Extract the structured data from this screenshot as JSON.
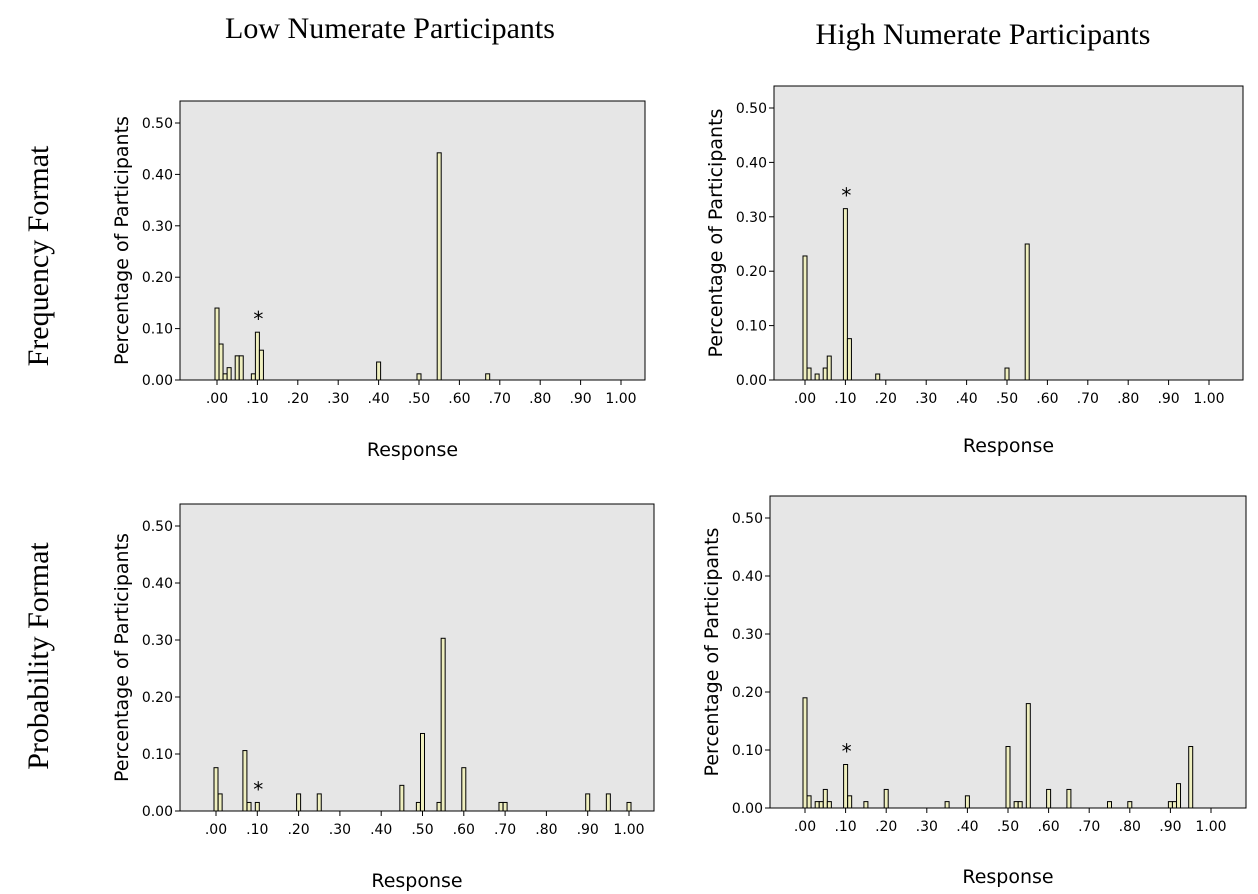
{
  "column_titles": [
    "Low Numerate Participants",
    "High Numerate Participants"
  ],
  "row_titles": [
    "Frequency Format",
    "Probability Format"
  ],
  "colors": {
    "bar_fill": "#efefbf",
    "plot_background": "#e6e6e6"
  },
  "chart_data": [
    {
      "type": "bar",
      "panel": "Low Numerate Participants / Frequency Format",
      "xlabel": "Response",
      "ylabel": "Percentage of Participants",
      "xlim": [
        0,
        1
      ],
      "ylim": [
        0,
        0.5
      ],
      "x_ticks": [
        ".00",
        ".10",
        ".20",
        ".30",
        ".40",
        ".50",
        ".60",
        ".70",
        ".80",
        ".90",
        "1.00"
      ],
      "y_ticks": [
        "0.00",
        "0.10",
        "0.20",
        "0.30",
        "0.40",
        "0.50"
      ],
      "grid": false,
      "points": [
        {
          "x": 0.0,
          "y": 0.14
        },
        {
          "x": 0.01,
          "y": 0.07
        },
        {
          "x": 0.02,
          "y": 0.012
        },
        {
          "x": 0.03,
          "y": 0.024
        },
        {
          "x": 0.05,
          "y": 0.047
        },
        {
          "x": 0.06,
          "y": 0.047
        },
        {
          "x": 0.09,
          "y": 0.012
        },
        {
          "x": 0.1,
          "y": 0.093
        },
        {
          "x": 0.11,
          "y": 0.058
        },
        {
          "x": 0.4,
          "y": 0.035
        },
        {
          "x": 0.5,
          "y": 0.012
        },
        {
          "x": 0.55,
          "y": 0.442
        },
        {
          "x": 0.67,
          "y": 0.012
        }
      ],
      "annotation": {
        "text": "*",
        "x": 0.1
      }
    },
    {
      "type": "bar",
      "panel": "High Numerate Participants / Frequency Format",
      "xlabel": "Response",
      "ylabel": "Percentage of Participants",
      "xlim": [
        0,
        1
      ],
      "ylim": [
        0,
        0.5
      ],
      "x_ticks": [
        ".00",
        ".10",
        ".20",
        ".30",
        ".40",
        ".50",
        ".60",
        ".70",
        ".80",
        ".90",
        "1.00"
      ],
      "y_ticks": [
        "0.00",
        "0.10",
        "0.20",
        "0.30",
        "0.40",
        "0.50"
      ],
      "grid": false,
      "points": [
        {
          "x": 0.0,
          "y": 0.228
        },
        {
          "x": 0.01,
          "y": 0.022
        },
        {
          "x": 0.03,
          "y": 0.011
        },
        {
          "x": 0.05,
          "y": 0.022
        },
        {
          "x": 0.06,
          "y": 0.044
        },
        {
          "x": 0.1,
          "y": 0.315
        },
        {
          "x": 0.11,
          "y": 0.076
        },
        {
          "x": 0.18,
          "y": 0.011
        },
        {
          "x": 0.5,
          "y": 0.022
        },
        {
          "x": 0.55,
          "y": 0.25
        }
      ],
      "annotation": {
        "text": "*",
        "x": 0.1
      }
    },
    {
      "type": "bar",
      "panel": "Low Numerate Participants / Probability Format",
      "xlabel": "Response",
      "ylabel": "Percentage of Participants",
      "xlim": [
        0,
        1
      ],
      "ylim": [
        0,
        0.5
      ],
      "x_ticks": [
        ".00",
        ".10",
        ".20",
        ".30",
        ".40",
        ".50",
        ".60",
        ".70",
        ".80",
        ".90",
        "1.00"
      ],
      "y_ticks": [
        "0.00",
        "0.10",
        "0.20",
        "0.30",
        "0.40",
        "0.50"
      ],
      "grid": false,
      "points": [
        {
          "x": 0.0,
          "y": 0.076
        },
        {
          "x": 0.01,
          "y": 0.03
        },
        {
          "x": 0.07,
          "y": 0.106
        },
        {
          "x": 0.08,
          "y": 0.015
        },
        {
          "x": 0.1,
          "y": 0.015
        },
        {
          "x": 0.2,
          "y": 0.03
        },
        {
          "x": 0.25,
          "y": 0.03
        },
        {
          "x": 0.45,
          "y": 0.045
        },
        {
          "x": 0.49,
          "y": 0.015
        },
        {
          "x": 0.5,
          "y": 0.136
        },
        {
          "x": 0.54,
          "y": 0.015
        },
        {
          "x": 0.55,
          "y": 0.303
        },
        {
          "x": 0.6,
          "y": 0.076
        },
        {
          "x": 0.69,
          "y": 0.015
        },
        {
          "x": 0.7,
          "y": 0.015
        },
        {
          "x": 0.9,
          "y": 0.03
        },
        {
          "x": 0.95,
          "y": 0.03
        },
        {
          "x": 1.0,
          "y": 0.015
        }
      ],
      "annotation": {
        "text": "*",
        "x": 0.1
      }
    },
    {
      "type": "bar",
      "panel": "High Numerate Participants / Probability Format",
      "xlabel": "Response",
      "ylabel": "Percentage of Participants",
      "xlim": [
        0,
        1
      ],
      "ylim": [
        0,
        0.5
      ],
      "x_ticks": [
        ".00",
        ".10",
        ".20",
        ".30",
        ".40",
        ".50",
        ".60",
        ".70",
        ".80",
        ".90",
        "1.00"
      ],
      "y_ticks": [
        "0.00",
        "0.10",
        "0.20",
        "0.30",
        "0.40",
        "0.50"
      ],
      "grid": false,
      "points": [
        {
          "x": 0.0,
          "y": 0.19
        },
        {
          "x": 0.01,
          "y": 0.021
        },
        {
          "x": 0.03,
          "y": 0.011
        },
        {
          "x": 0.04,
          "y": 0.011
        },
        {
          "x": 0.05,
          "y": 0.032
        },
        {
          "x": 0.06,
          "y": 0.011
        },
        {
          "x": 0.1,
          "y": 0.075
        },
        {
          "x": 0.11,
          "y": 0.021
        },
        {
          "x": 0.15,
          "y": 0.011
        },
        {
          "x": 0.2,
          "y": 0.032
        },
        {
          "x": 0.35,
          "y": 0.011
        },
        {
          "x": 0.4,
          "y": 0.021
        },
        {
          "x": 0.5,
          "y": 0.106
        },
        {
          "x": 0.52,
          "y": 0.011
        },
        {
          "x": 0.53,
          "y": 0.011
        },
        {
          "x": 0.55,
          "y": 0.18
        },
        {
          "x": 0.6,
          "y": 0.032
        },
        {
          "x": 0.65,
          "y": 0.032
        },
        {
          "x": 0.75,
          "y": 0.011
        },
        {
          "x": 0.8,
          "y": 0.011
        },
        {
          "x": 0.9,
          "y": 0.011
        },
        {
          "x": 0.91,
          "y": 0.011
        },
        {
          "x": 0.92,
          "y": 0.042
        },
        {
          "x": 0.95,
          "y": 0.106
        }
      ],
      "annotation": {
        "text": "*",
        "x": 0.1
      }
    }
  ]
}
